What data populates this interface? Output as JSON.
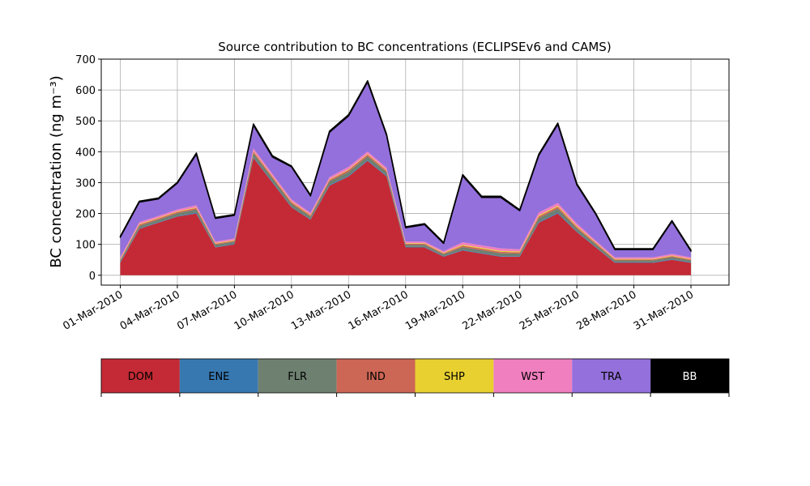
{
  "chart_data": {
    "type": "stacked_area",
    "title": "Source contribution to BC concentrations (ECLIPSEv6 and CAMS)",
    "y_label": "BC concentration (ng m⁻³)",
    "x": [
      "2010-03-01",
      "2010-03-02",
      "2010-03-03",
      "2010-03-04",
      "2010-03-05",
      "2010-03-06",
      "2010-03-07",
      "2010-03-08",
      "2010-03-09",
      "2010-03-10",
      "2010-03-11",
      "2010-03-12",
      "2010-03-13",
      "2010-03-14",
      "2010-03-15",
      "2010-03-16",
      "2010-03-17",
      "2010-03-18",
      "2010-03-19",
      "2010-03-20",
      "2010-03-21",
      "2010-03-22",
      "2010-03-23",
      "2010-03-24",
      "2010-03-25",
      "2010-03-26",
      "2010-03-27",
      "2010-03-28",
      "2010-03-29",
      "2010-03-30",
      "2010-03-31"
    ],
    "series": [
      {
        "name": "DOM",
        "color": "#c42a35",
        "values": [
          40,
          150,
          170,
          190,
          200,
          90,
          100,
          380,
          300,
          220,
          180,
          290,
          320,
          370,
          320,
          90,
          90,
          60,
          80,
          70,
          60,
          60,
          170,
          200,
          140,
          90,
          40,
          40,
          40,
          50,
          40
        ]
      },
      {
        "name": "ENE",
        "color": "#3878b0",
        "values": [
          2,
          2,
          2,
          2,
          3,
          2,
          2,
          3,
          3,
          2,
          2,
          3,
          3,
          3,
          3,
          2,
          2,
          2,
          2,
          2,
          2,
          2,
          3,
          3,
          2,
          2,
          2,
          2,
          2,
          2,
          2
        ]
      },
      {
        "name": "FLR",
        "color": "#6e8070",
        "values": [
          6,
          8,
          8,
          9,
          10,
          7,
          7,
          12,
          11,
          10,
          8,
          11,
          12,
          12,
          11,
          7,
          7,
          6,
          9,
          9,
          9,
          8,
          12,
          13,
          10,
          8,
          6,
          6,
          6,
          7,
          6
        ]
      },
      {
        "name": "IND",
        "color": "#cc6655",
        "values": [
          3,
          4,
          4,
          4,
          5,
          3,
          3,
          6,
          5,
          5,
          4,
          5,
          6,
          6,
          5,
          3,
          3,
          3,
          5,
          5,
          5,
          4,
          6,
          6,
          5,
          4,
          3,
          3,
          3,
          3,
          3
        ]
      },
      {
        "name": "SHP",
        "color": "#e8d030",
        "values": [
          2,
          2,
          2,
          2,
          2,
          2,
          2,
          2,
          2,
          2,
          2,
          2,
          2,
          2,
          2,
          2,
          2,
          2,
          3,
          3,
          3,
          3,
          3,
          3,
          3,
          2,
          2,
          2,
          2,
          2,
          2
        ]
      },
      {
        "name": "WST",
        "color": "#f07fbf",
        "values": [
          5,
          6,
          6,
          6,
          7,
          5,
          5,
          8,
          7,
          7,
          6,
          7,
          8,
          8,
          7,
          5,
          5,
          5,
          8,
          8,
          8,
          7,
          9,
          9,
          8,
          6,
          5,
          5,
          5,
          5,
          5
        ]
      },
      {
        "name": "TRA",
        "color": "#9370db",
        "values": [
          65,
          65,
          55,
          85,
          165,
          75,
          75,
          75,
          55,
          105,
          55,
          145,
          165,
          225,
          105,
          45,
          55,
          25,
          215,
          155,
          165,
          125,
          185,
          255,
          125,
          85,
          25,
          25,
          25,
          105,
          20
        ]
      },
      {
        "name": "BB",
        "color": "#000000",
        "values": [
          3,
          3,
          3,
          3,
          4,
          3,
          3,
          4,
          4,
          3,
          3,
          4,
          4,
          4,
          4,
          3,
          3,
          3,
          4,
          4,
          4,
          3,
          4,
          4,
          4,
          3,
          3,
          3,
          3,
          3,
          3
        ]
      }
    ],
    "xlim": [
      "2010-02-28",
      "2010-04-02"
    ],
    "xticks": [
      {
        "value": "2010-03-01",
        "label": "01-Mar-2010"
      },
      {
        "value": "2010-03-04",
        "label": "04-Mar-2010"
      },
      {
        "value": "2010-03-07",
        "label": "07-Mar-2010"
      },
      {
        "value": "2010-03-10",
        "label": "10-Mar-2010"
      },
      {
        "value": "2010-03-13",
        "label": "13-Mar-2010"
      },
      {
        "value": "2010-03-16",
        "label": "16-Mar-2010"
      },
      {
        "value": "2010-03-19",
        "label": "19-Mar-2010"
      },
      {
        "value": "2010-03-22",
        "label": "22-Mar-2010"
      },
      {
        "value": "2010-03-25",
        "label": "25-Mar-2010"
      },
      {
        "value": "2010-03-28",
        "label": "28-Mar-2010"
      },
      {
        "value": "2010-03-31",
        "label": "31-Mar-2010"
      }
    ],
    "ylim": [
      -32,
      700
    ],
    "yticks": [
      0,
      100,
      200,
      300,
      400,
      500,
      600,
      700
    ],
    "grid": true
  }
}
